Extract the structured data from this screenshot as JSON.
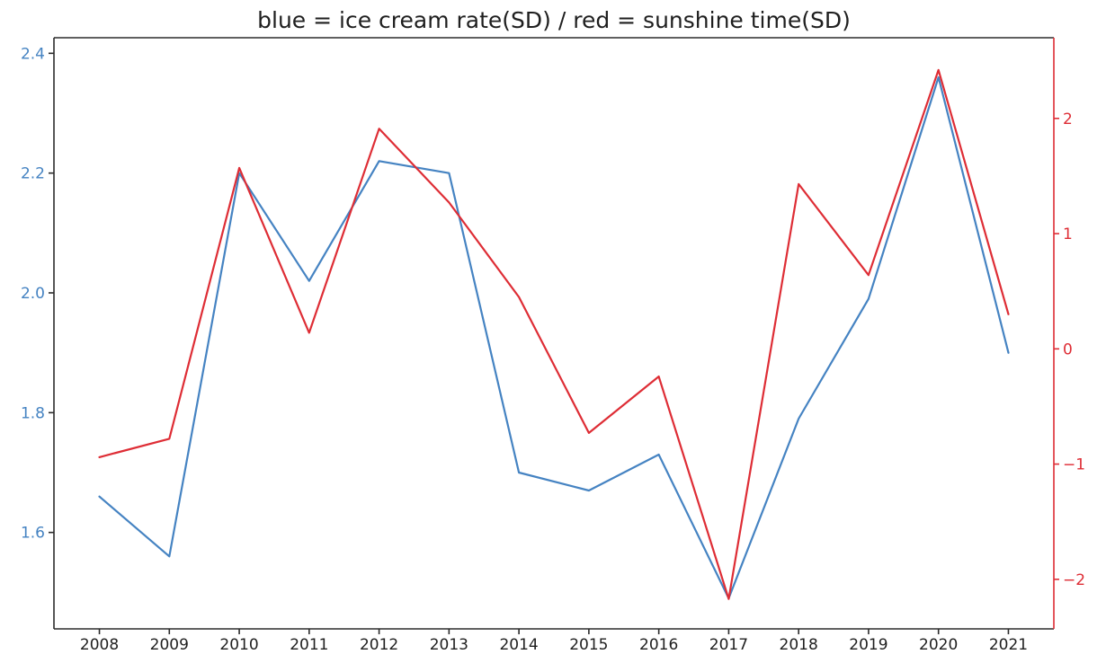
{
  "chart_data": {
    "type": "line",
    "title": "blue = ice cream rate(SD) / red = sunshine time(SD)",
    "x": [
      2008,
      2009,
      2010,
      2011,
      2012,
      2013,
      2014,
      2015,
      2016,
      2017,
      2018,
      2019,
      2020,
      2021
    ],
    "x_tick_labels": [
      "2008",
      "2009",
      "2010",
      "2011",
      "2012",
      "2013",
      "2014",
      "2015",
      "2016",
      "2017",
      "2018",
      "2019",
      "2020",
      "2021"
    ],
    "series": [
      {
        "name": "ice cream rate(SD)",
        "axis": "left",
        "color": "#4583c2",
        "values": [
          1.66,
          1.56,
          2.2,
          2.02,
          2.22,
          2.2,
          1.7,
          1.67,
          1.73,
          1.49,
          1.79,
          1.99,
          2.36,
          1.9
        ]
      },
      {
        "name": "sunshine time(SD)",
        "axis": "right",
        "color": "#de2d35",
        "values": [
          -0.94,
          -0.78,
          1.57,
          0.14,
          1.91,
          1.27,
          0.45,
          -0.73,
          -0.24,
          -2.17,
          1.43,
          0.64,
          2.42,
          0.3
        ]
      }
    ],
    "left_axis": {
      "ticks": [
        1.6,
        1.8,
        2.0,
        2.2,
        2.4
      ],
      "ylim": [
        1.439,
        2.426
      ],
      "label_color": "#4583c2",
      "tick_color": "#2b2b2b"
    },
    "right_axis": {
      "ticks": [
        -2,
        -1,
        0,
        1,
        2
      ],
      "ylim": [
        -2.43,
        2.7
      ],
      "label_color": "#de2d35",
      "tick_color": "#de2d35",
      "spine_color": "#de2d35"
    },
    "x_axis": {
      "xlim": [
        2007.35,
        2021.65
      ],
      "label_color": "#1f1f1f",
      "tick_color": "#2b2b2b",
      "spine_color": "#2b2b2b"
    },
    "grid": false,
    "legend_position": "none"
  }
}
